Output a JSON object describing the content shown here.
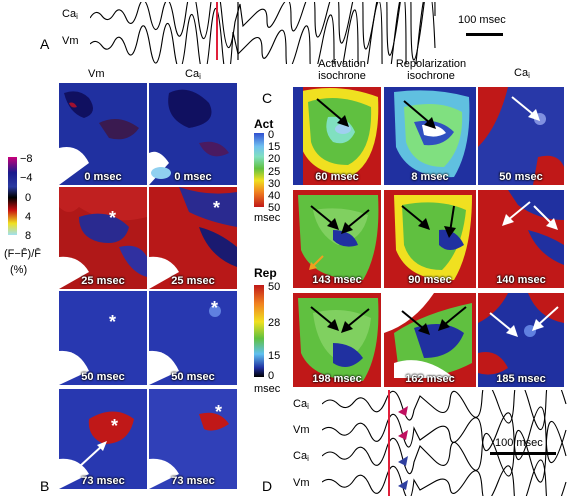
{
  "panel_letters": {
    "A": "A",
    "B": "B",
    "C": "C",
    "D": "D"
  },
  "traces": {
    "top_ca": "Ca",
    "top_vm": "Vm",
    "scale_top": "100 msec",
    "bot_ca1": "Ca",
    "bot_vm1": "Vm",
    "bot_ca2": "Ca",
    "bot_vm2": "Vm",
    "scale_bot": "100 msec",
    "sub_i": "i"
  },
  "panel_b": {
    "col_vm": "Vm",
    "col_ca": "Ca",
    "rows": [
      {
        "vm_time": "0 msec",
        "ca_time": "0 msec"
      },
      {
        "vm_time": "25 msec",
        "ca_time": "25 msec"
      },
      {
        "vm_time": "50 msec",
        "ca_time": "50 msec"
      },
      {
        "vm_time": "73 msec",
        "ca_time": "73 msec"
      }
    ],
    "colorbar": {
      "ticks": [
        "−8",
        "−4",
        "0",
        "4",
        "8"
      ],
      "label_line1": "(F−F̄)/F̄",
      "label_line2": "(%)",
      "colors": [
        "#c8007a",
        "#1a1a8c",
        "#2a3aa0",
        "#000000",
        "#c81010",
        "#f0e020",
        "#a0e0f0"
      ]
    }
  },
  "panel_c": {
    "col_act_line1": "Activation",
    "col_act_line2": "isochrone",
    "col_rep_line1": "Repolarization",
    "col_rep_line2": "isochrone",
    "col_ca": "Ca",
    "rows": [
      {
        "act_time": "60 msec",
        "rep_time": "8 msec",
        "ca_time": "50 msec"
      },
      {
        "act_time": "143 msec",
        "rep_time": "90 msec",
        "ca_time": "140 msec"
      },
      {
        "act_time": "198 msec",
        "rep_time": "162 msec",
        "ca_time": "185 msec"
      }
    ],
    "act_scale": {
      "title": "Act",
      "ticks": [
        "0",
        "15",
        "20",
        "25",
        "30",
        "40",
        "50"
      ],
      "unit": "msec"
    },
    "rep_scale": {
      "title": "Rep",
      "ticks": [
        "50",
        "28",
        "15",
        "0"
      ],
      "unit": "msec"
    }
  },
  "colors": {
    "marker_red": "#e0203a",
    "arrow_purple": "#c01060",
    "arrow_blue": "#3040a0",
    "arrow_orange": "#f0a020"
  }
}
